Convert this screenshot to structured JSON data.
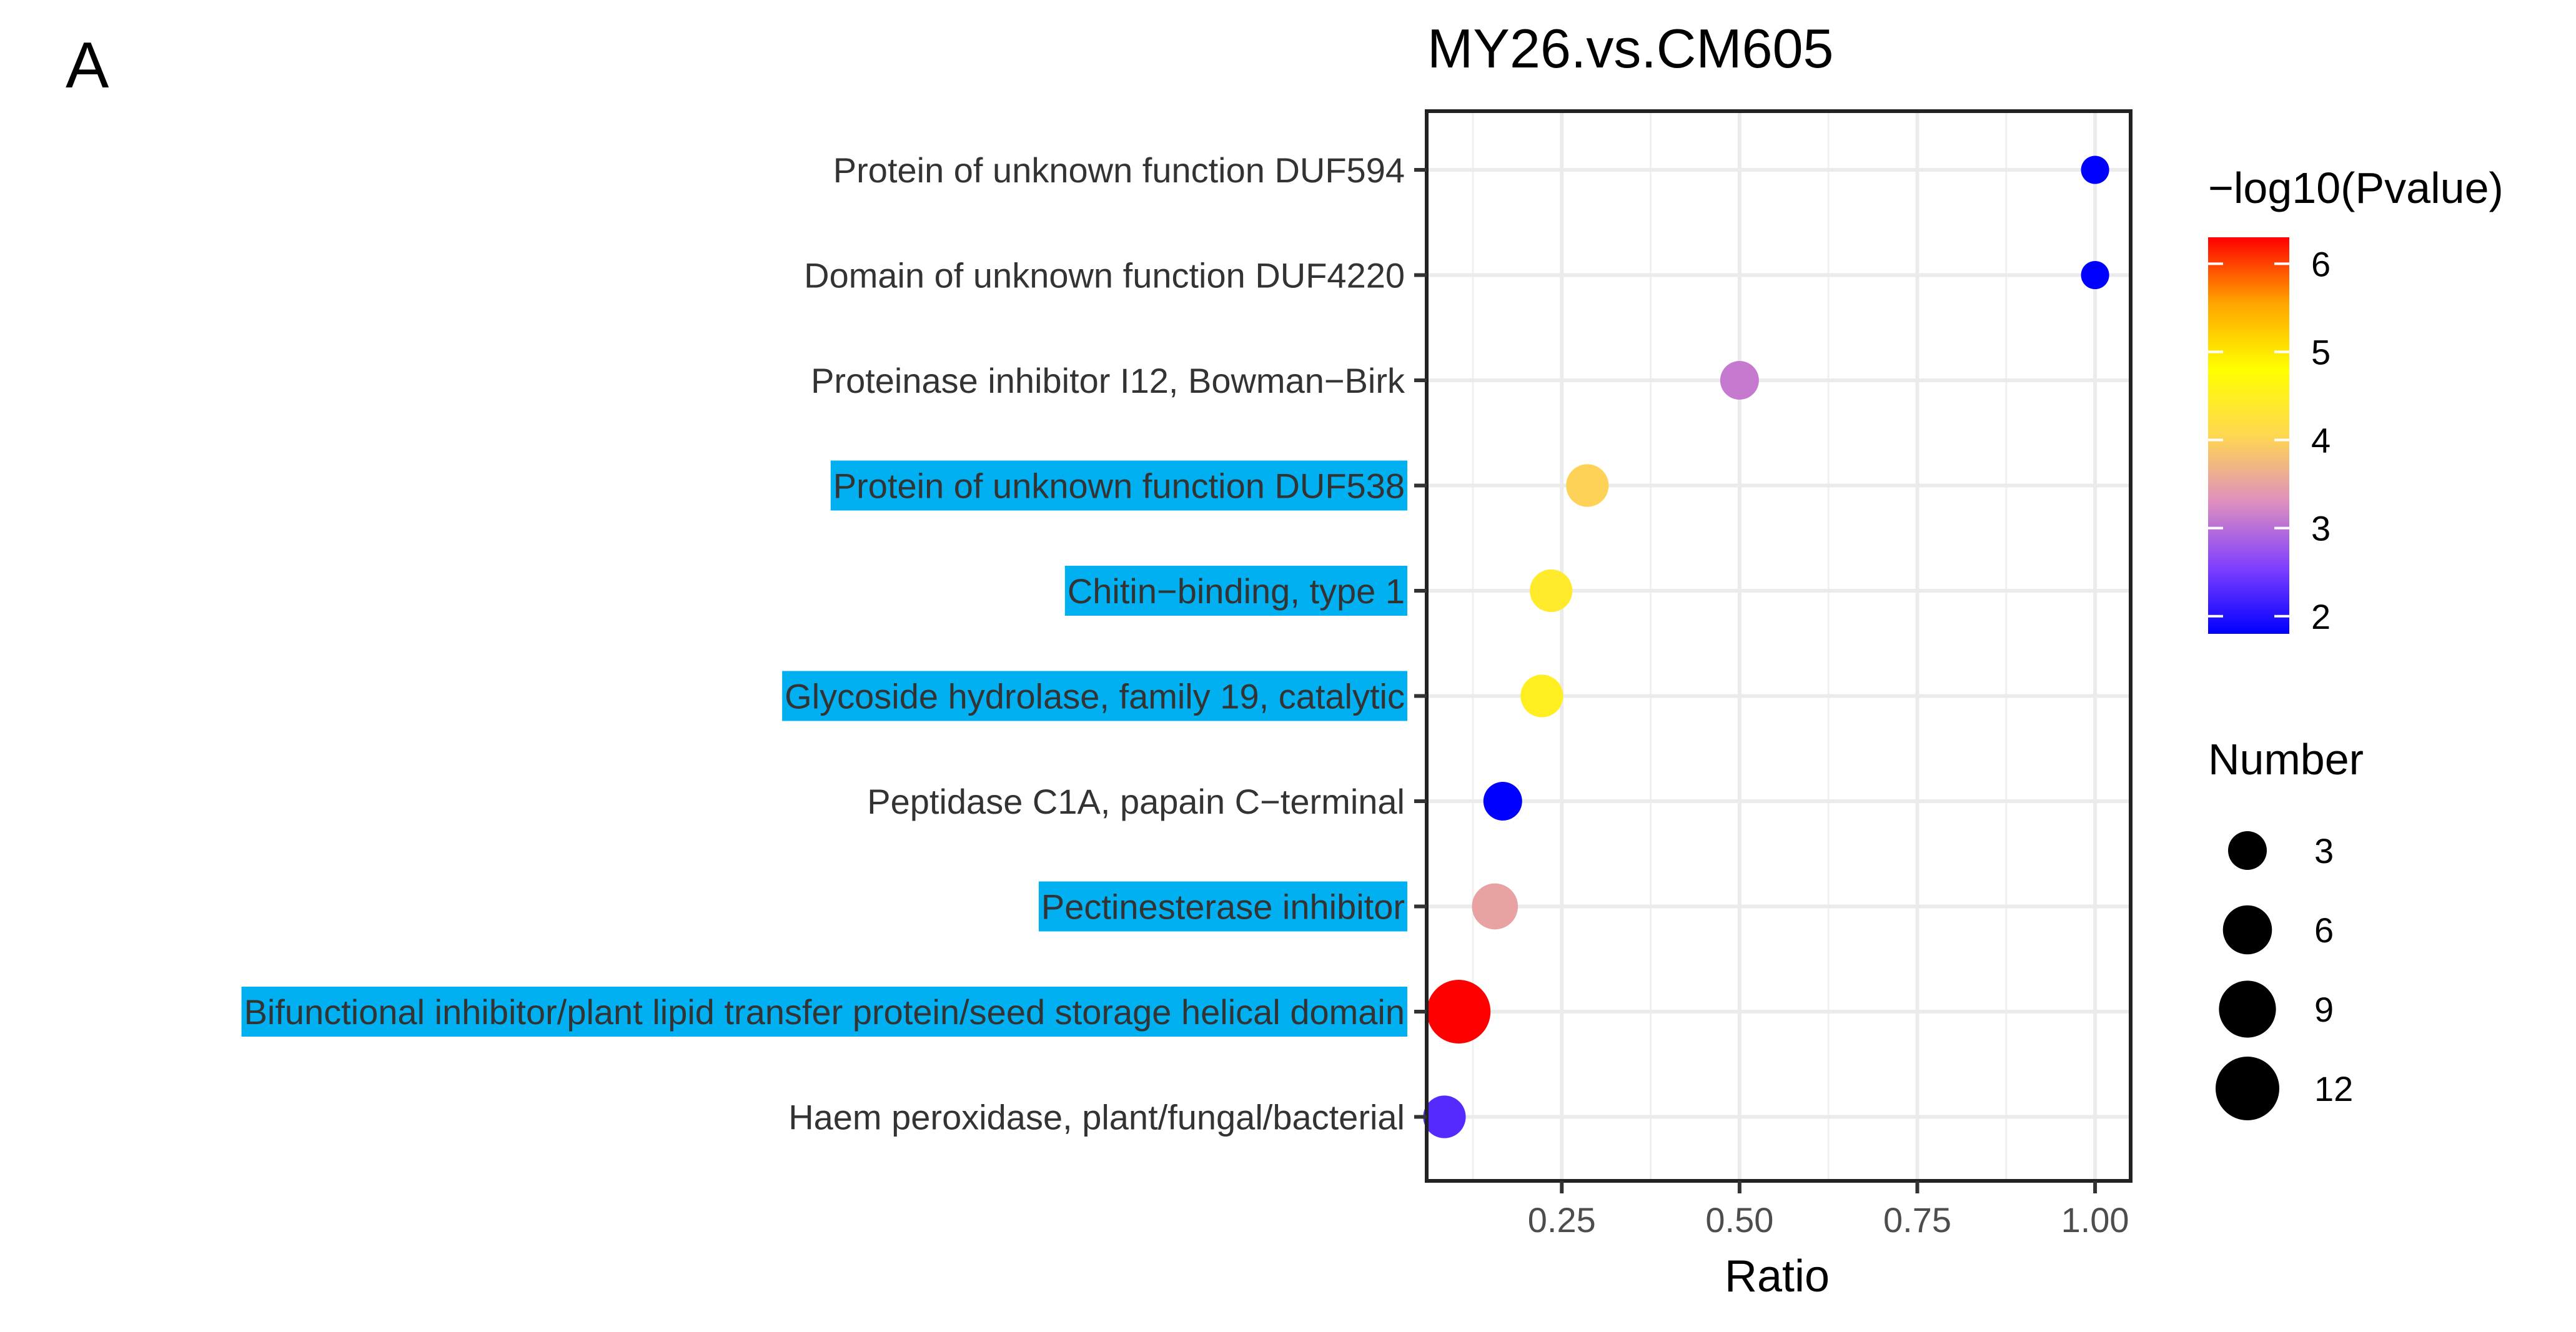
{
  "panel_label": "A",
  "chart_data": {
    "type": "scatter",
    "title": "MY26.vs.CM605",
    "xlabel": "Ratio",
    "ylabel": "",
    "xlim": [
      0.06,
      1.05
    ],
    "xticks": [
      0.25,
      0.5,
      0.75,
      1.0
    ],
    "xtick_labels": [
      "0.25",
      "0.50",
      "0.75",
      "1.00"
    ],
    "grid": true,
    "categories": [
      "Protein of unknown function DUF594",
      "Domain of unknown function DUF4220",
      "Proteinase inhibitor I12, Bowman−Birk",
      "Protein of unknown function DUF538",
      "Chitin−binding, type 1",
      "Glycoside hydrolase, family 19, catalytic",
      "Peptidase C1A, papain C−terminal",
      "Pectinesterase inhibitor",
      "Bifunctional inhibitor/plant lipid transfer protein/seed storage helical domain",
      "Haem peroxidase, plant/fungal/bacterial"
    ],
    "highlighted": [
      false,
      false,
      false,
      true,
      true,
      true,
      false,
      true,
      true,
      false
    ],
    "highlight_color": "#00b0f0",
    "points": [
      {
        "ratio": 1.0,
        "number": 1,
        "neg_log10_pvalue": 1.8
      },
      {
        "ratio": 1.0,
        "number": 1,
        "neg_log10_pvalue": 1.8
      },
      {
        "ratio": 0.5,
        "number": 3,
        "neg_log10_pvalue": 3.1
      },
      {
        "ratio": 0.286,
        "number": 4,
        "neg_log10_pvalue": 4.0
      },
      {
        "ratio": 0.235,
        "number": 4,
        "neg_log10_pvalue": 4.4
      },
      {
        "ratio": 0.222,
        "number": 4,
        "neg_log10_pvalue": 4.5
      },
      {
        "ratio": 0.167,
        "number": 3,
        "neg_log10_pvalue": 1.8
      },
      {
        "ratio": 0.156,
        "number": 5,
        "neg_log10_pvalue": 3.5
      },
      {
        "ratio": 0.105,
        "number": 12,
        "neg_log10_pvalue": 6.3
      },
      {
        "ratio": 0.085,
        "number": 4,
        "neg_log10_pvalue": 2.3
      }
    ],
    "color_legend": {
      "title": "−log10(Pvalue)",
      "range": [
        1.8,
        6.3
      ],
      "ticks": [
        2,
        3,
        4,
        5,
        6
      ],
      "colors": [
        "#0000ff",
        "#7f3fff",
        "#df8fbf",
        "#ffd750",
        "#ffff00",
        "#ffa500",
        "#ff0000"
      ]
    },
    "size_legend": {
      "title": "Number",
      "values": [
        3,
        6,
        9,
        12
      ]
    }
  }
}
